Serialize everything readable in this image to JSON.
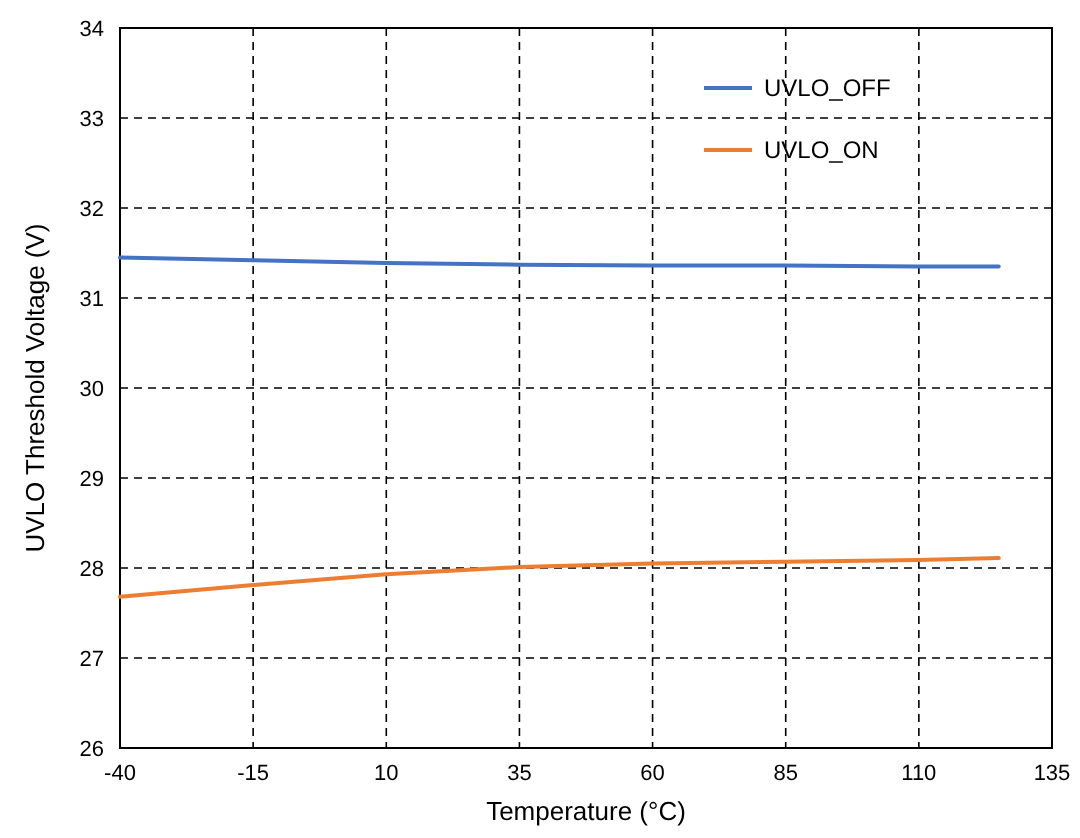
{
  "chart_data": {
    "type": "line",
    "xlabel": "Temperature (°C)",
    "ylabel": "UVLO Threshold Voltage (V)",
    "xlim": [
      -40,
      135
    ],
    "xticks": [
      -40,
      -15,
      10,
      35,
      60,
      85,
      110,
      135
    ],
    "ylim": [
      26,
      34
    ],
    "yticks": [
      26,
      27,
      28,
      29,
      30,
      31,
      32,
      33,
      34
    ],
    "grid": true,
    "legend": "top right",
    "marker": "none",
    "line_style": "solid",
    "series": [
      {
        "name": "UVLO_OFF",
        "color": "#4472c4",
        "x": [
          -40,
          -15,
          10,
          35,
          60,
          85,
          110,
          125
        ],
        "values": [
          31.45,
          31.42,
          31.39,
          31.37,
          31.36,
          31.36,
          31.35,
          31.35
        ]
      },
      {
        "name": "UVLO_ON",
        "color": "#ed7d31",
        "x": [
          -40,
          -15,
          10,
          35,
          60,
          85,
          110,
          125
        ],
        "values": [
          27.68,
          27.81,
          27.93,
          28.01,
          28.05,
          28.07,
          28.09,
          28.11
        ]
      }
    ]
  }
}
